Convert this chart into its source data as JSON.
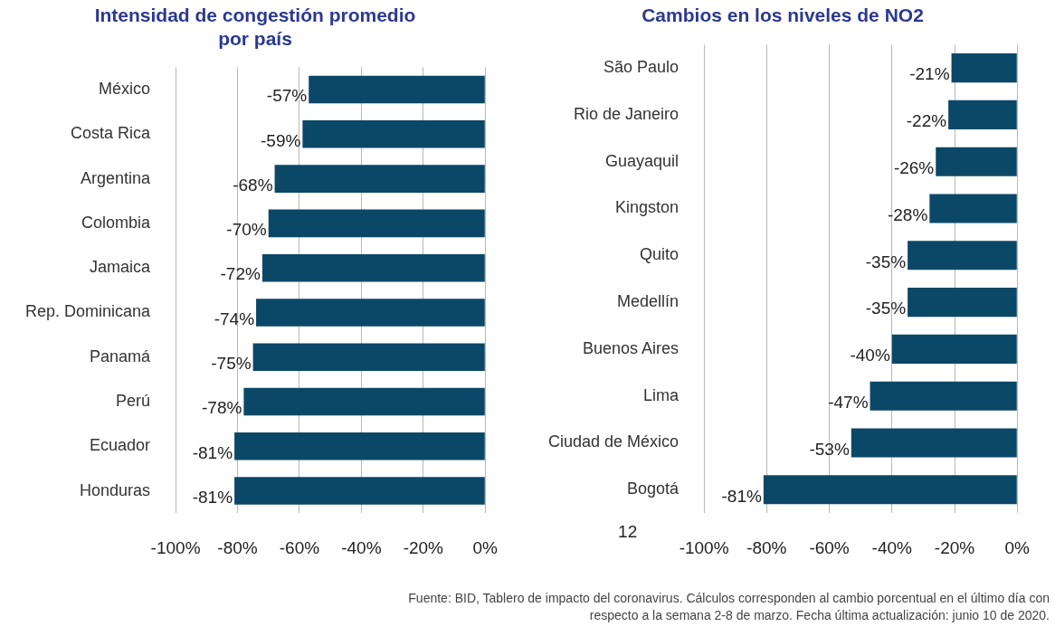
{
  "chart_data": [
    {
      "type": "bar",
      "orientation": "horizontal",
      "title": "Intensidad de congestión promedio\npor país",
      "categories": [
        "México",
        "Costa Rica",
        "Argentina",
        "Colombia",
        "Jamaica",
        "Rep. Dominicana",
        "Panamá",
        "Perú",
        "Ecuador",
        "Honduras"
      ],
      "values": [
        -57,
        -59,
        -68,
        -70,
        -72,
        -74,
        -75,
        -78,
        -81,
        -81
      ],
      "value_labels": [
        "-57%",
        "-59%",
        "-68%",
        "-70%",
        "-72%",
        "-74%",
        "-75%",
        "-78%",
        "-81%",
        "-81%"
      ],
      "color": "#0b4868",
      "xlim": [
        -100,
        0
      ],
      "xticks": [
        {
          "value": -100,
          "label": "-100%"
        },
        {
          "value": -80,
          "label": "-80%"
        },
        {
          "value": -60,
          "label": "-60%"
        },
        {
          "value": -40,
          "label": "-40%"
        },
        {
          "value": -20,
          "label": "-20%"
        },
        {
          "value": 0,
          "label": "0%"
        }
      ],
      "grid": "x",
      "legend": false
    },
    {
      "type": "bar",
      "orientation": "horizontal",
      "title": "Cambios en los niveles de NO2",
      "categories": [
        "São Paulo",
        "Rio de Janeiro",
        "Guayaquil",
        "Kingston",
        "Quito",
        "Medellín",
        "Buenos Aires",
        "Lima",
        "Ciudad de México",
        "Bogotá"
      ],
      "values": [
        -21,
        -22,
        -26,
        -28,
        -35,
        -35,
        -40,
        -47,
        -53,
        -81
      ],
      "value_labels": [
        "-21%",
        "-22%",
        "-26%",
        "-28%",
        "-35%",
        "-35%",
        "-40%",
        "-47%",
        "-53%",
        "-81%"
      ],
      "color": "#0b4868",
      "xlim": [
        -100,
        0
      ],
      "xticks": [
        {
          "value": -100,
          "label": "-100%"
        },
        {
          "value": -80,
          "label": "-80%"
        },
        {
          "value": -60,
          "label": "-60%"
        },
        {
          "value": -40,
          "label": "-40%"
        },
        {
          "value": -20,
          "label": "-20%"
        },
        {
          "value": 0,
          "label": "0%"
        }
      ],
      "grid": "x",
      "legend": false,
      "annotations": [
        "12",
        "Fuente: BID, Tablero de impacto del coronavirus. Cálculos corresponden al cambio porcentual en el último día con respecto a la semana 2-8 de marzo. Fecha última actualización: junio 10 de 2020."
      ]
    }
  ]
}
